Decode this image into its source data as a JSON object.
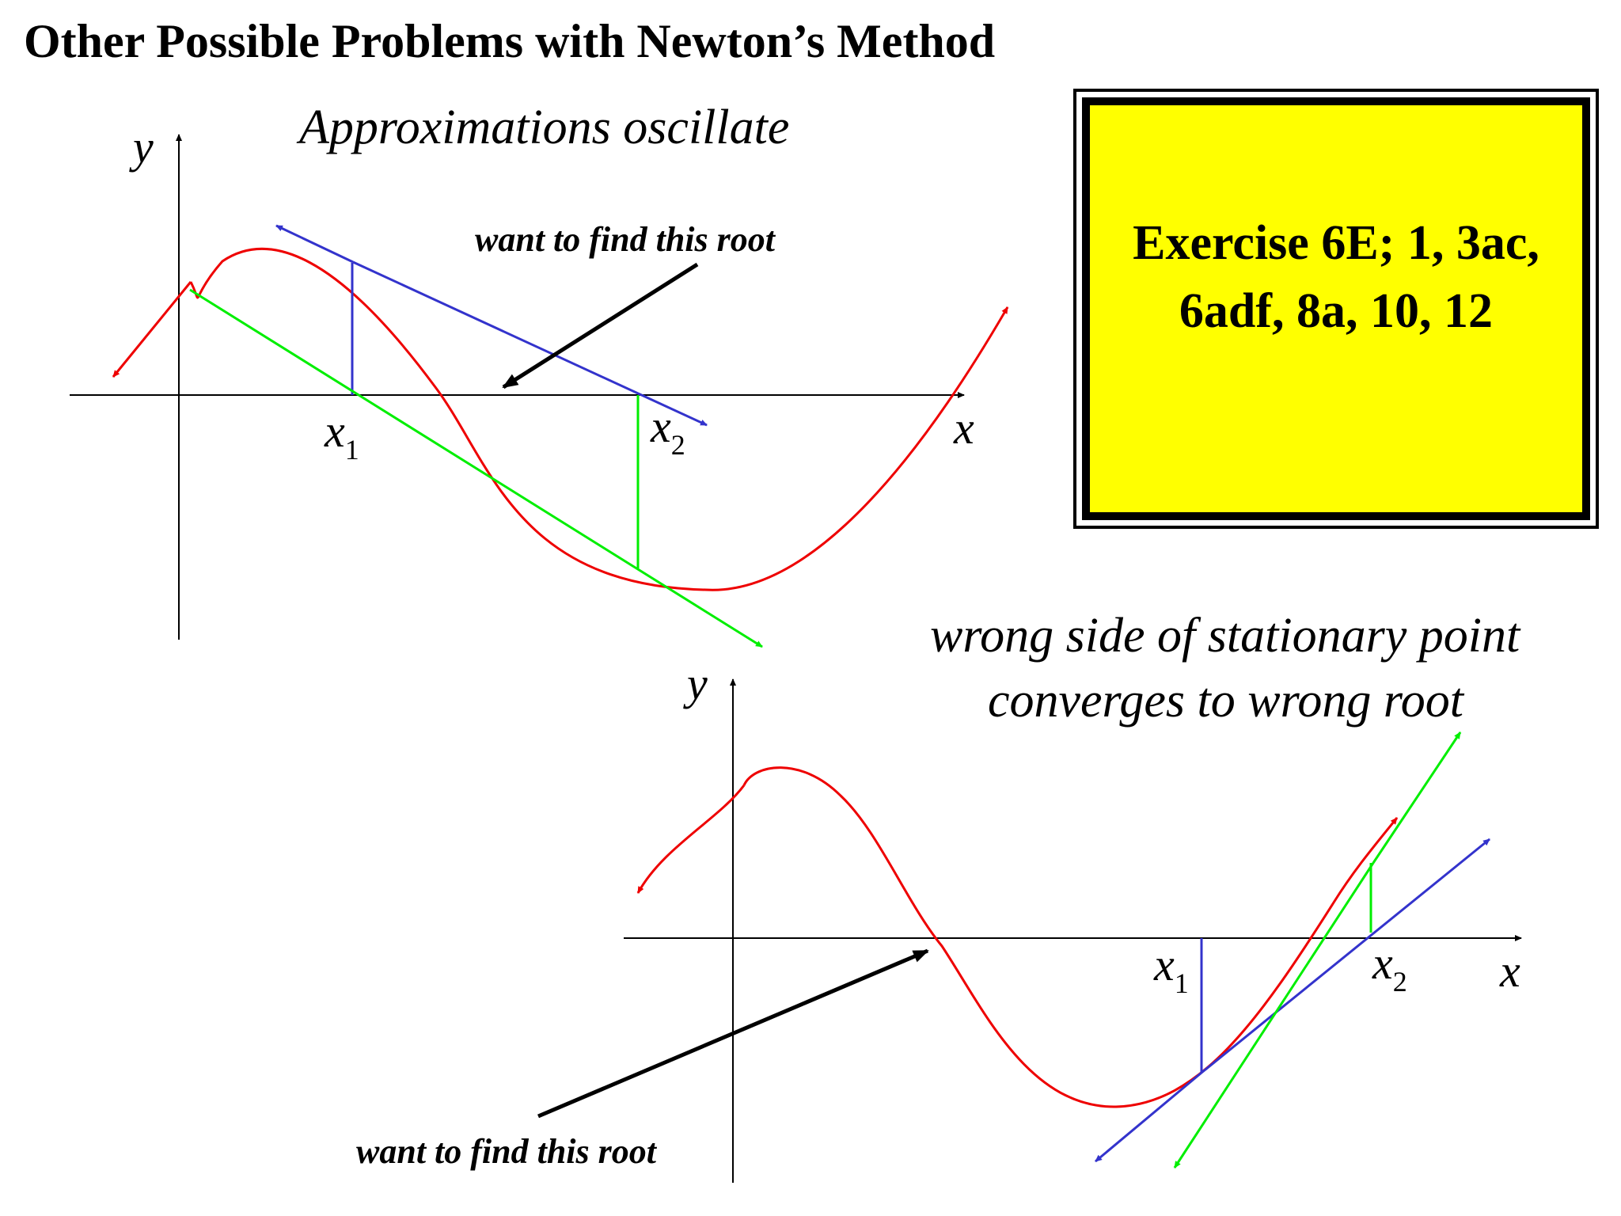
{
  "title": "Other Possible Problems with Newton’s Method",
  "exercise": {
    "text": "Exercise 6E; 1, 3ac,\n6adf, 8a, 10, 12",
    "fill": "#ffff00",
    "border": "#000000"
  },
  "diagram1": {
    "caption": "Approximations oscillate",
    "annotation": "want to find this root",
    "x_axis_label": "x",
    "y_axis_label": "y",
    "point1": {
      "base": "x",
      "sub": "1"
    },
    "point2": {
      "base": "x",
      "sub": "2"
    }
  },
  "diagram2": {
    "caption_line1": "wrong side of stationary point",
    "caption_line2": "converges to wrong root",
    "annotation": "want to find this root",
    "x_axis_label": "x",
    "y_axis_label": "y",
    "point1": {
      "base": "x",
      "sub": "1"
    },
    "point2": {
      "base": "x",
      "sub": "2"
    }
  },
  "colors": {
    "curve": "#ee0000",
    "tangent_blue": "#3333cc",
    "tangent_green": "#00ee00",
    "axis": "#000000"
  }
}
